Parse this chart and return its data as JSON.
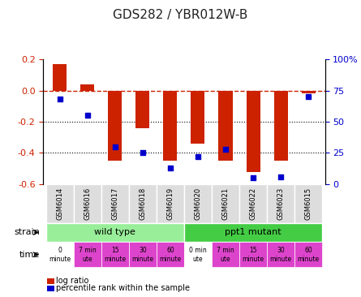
{
  "title": "GDS282 / YBR012W-B",
  "samples": [
    "GSM6014",
    "GSM6016",
    "GSM6017",
    "GSM6018",
    "GSM6019",
    "GSM6020",
    "GSM6021",
    "GSM6022",
    "GSM6023",
    "GSM6015"
  ],
  "log_ratio": [
    0.17,
    0.04,
    -0.45,
    -0.24,
    -0.45,
    -0.34,
    -0.45,
    -0.52,
    -0.45,
    -0.02
  ],
  "percentile": [
    68,
    55,
    30,
    25,
    13,
    22,
    28,
    5,
    6,
    70
  ],
  "ylim_left": [
    -0.6,
    0.2
  ],
  "ylim_right": [
    0,
    100
  ],
  "bar_color": "#cc2200",
  "dot_color": "#0000cc",
  "grid_color": "#000000",
  "dashed_line_color": "#cc2200",
  "bg_color": "#ffffff",
  "strain_labels": [
    {
      "label": "wild type",
      "start": 0,
      "end": 5,
      "color": "#99ee99"
    },
    {
      "label": "ppt1 mutant",
      "start": 5,
      "end": 10,
      "color": "#44cc44"
    }
  ],
  "time_labels": [
    {
      "text": "0\nminute",
      "color": "#ffffff"
    },
    {
      "text": "7 min\nute",
      "color": "#dd44cc"
    },
    {
      "text": "15\nminute",
      "color": "#dd44cc"
    },
    {
      "text": "30\nminute",
      "color": "#dd44cc"
    },
    {
      "text": "60\nminute",
      "color": "#dd44cc"
    },
    {
      "text": "0 min\nute",
      "color": "#ffffff"
    },
    {
      "text": "7 min\nute",
      "color": "#dd44cc"
    },
    {
      "text": "15\nminute",
      "color": "#dd44cc"
    },
    {
      "text": "30\nminute",
      "color": "#dd44cc"
    },
    {
      "text": "60\nminute",
      "color": "#dd44cc"
    }
  ],
  "ylabel_left": "",
  "ylabel_right": "",
  "tick_left": [
    -0.6,
    -0.4,
    -0.2,
    0.0,
    0.2
  ],
  "tick_right": [
    0,
    25,
    50,
    75,
    100
  ],
  "tick_right_labels": [
    "0",
    "25",
    "50",
    "75",
    "100%"
  ],
  "dotted_lines": [
    -0.2,
    -0.4
  ],
  "legend": [
    {
      "color": "#cc2200",
      "label": "log ratio"
    },
    {
      "color": "#0000cc",
      "label": "percentile rank within the sample"
    }
  ]
}
